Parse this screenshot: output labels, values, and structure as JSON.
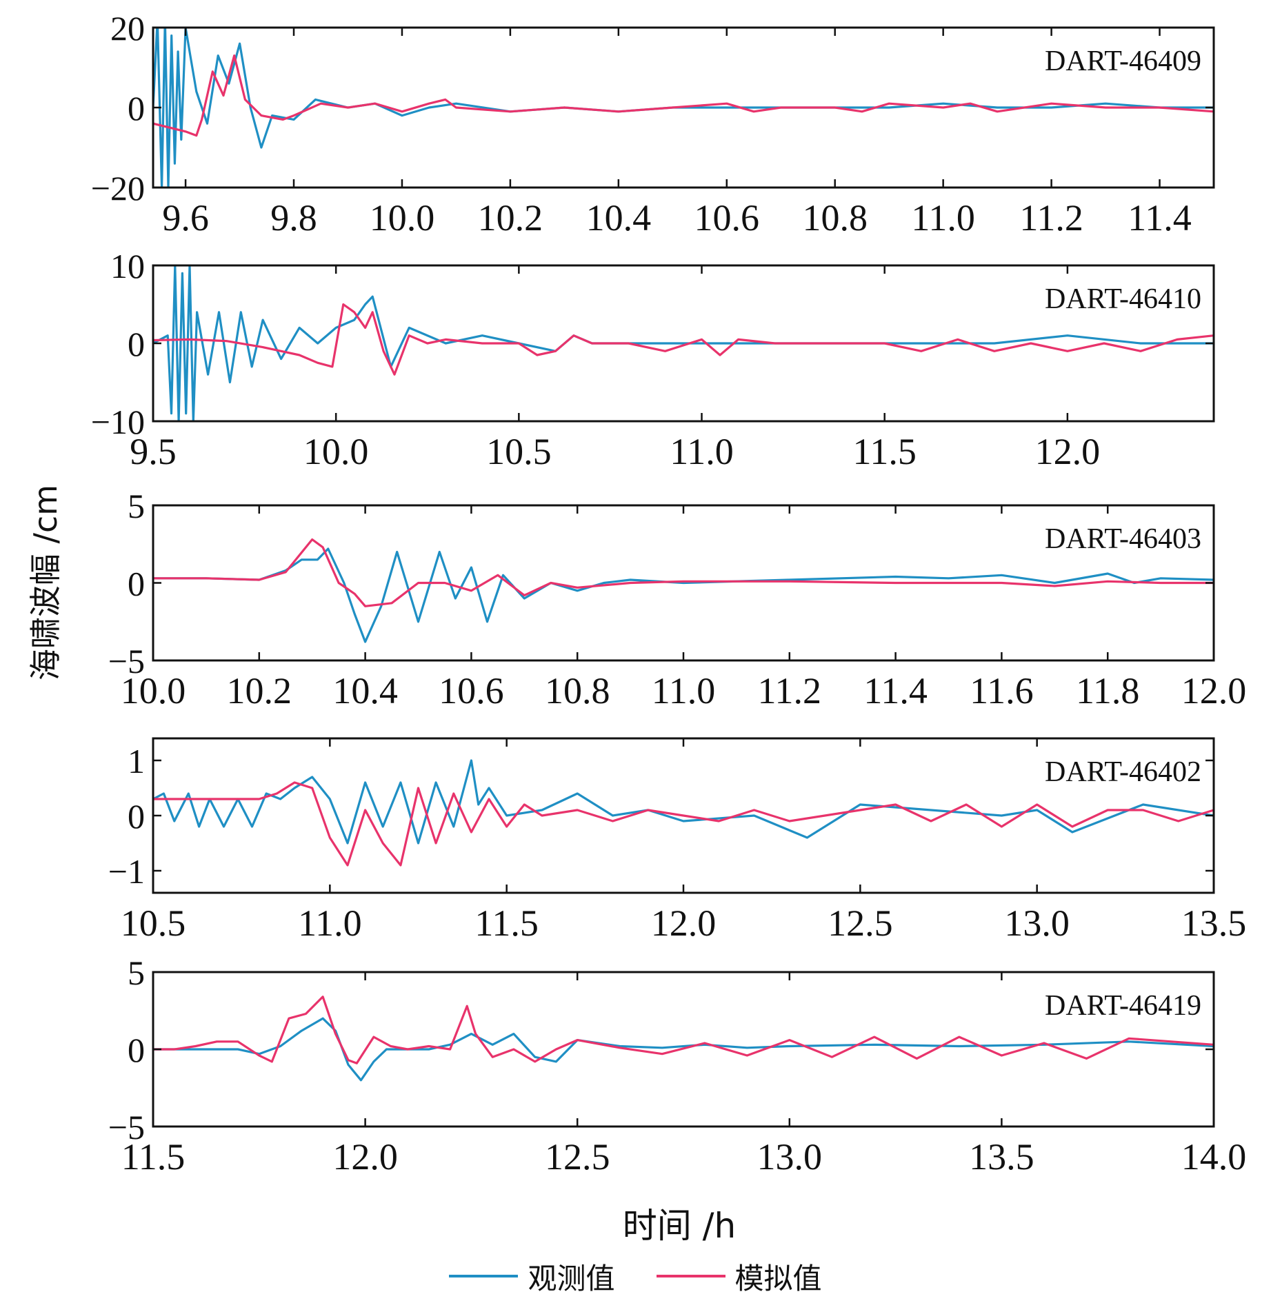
{
  "figure": {
    "ylabel": "海啸波幅 /cm",
    "xlabel": "时间 /h",
    "legend": [
      {
        "label": "观测值",
        "color": "#1f8fc4"
      },
      {
        "label": "模拟值",
        "color": "#e8336b"
      }
    ]
  },
  "chart_data": [
    {
      "type": "line",
      "station": "DART-46409",
      "xlim": [
        9.54,
        11.5
      ],
      "ylim": [
        -20,
        20
      ],
      "xticks": [
        9.6,
        9.8,
        10.0,
        10.2,
        10.4,
        10.6,
        10.8,
        11.0,
        11.2,
        11.4
      ],
      "xtick_labels": [
        "9.6",
        "9.8",
        "10.0",
        "10.2",
        "10.4",
        "10.6",
        "10.8",
        "11.0",
        "11.2",
        "11.4"
      ],
      "yticks": [
        -20,
        0,
        20
      ],
      "ytick_labels": [
        "−20",
        "0",
        "20"
      ],
      "series": [
        {
          "name": "观测值",
          "x": [
            9.54,
            9.548,
            9.556,
            9.562,
            9.568,
            9.574,
            9.58,
            9.586,
            9.592,
            9.6,
            9.61,
            9.62,
            9.64,
            9.66,
            9.68,
            9.7,
            9.72,
            9.74,
            9.76,
            9.8,
            9.84,
            9.9,
            9.95,
            10.0,
            10.05,
            10.1,
            10.2,
            10.3,
            10.4,
            10.5,
            10.6,
            10.7,
            10.8,
            10.9,
            11.0,
            11.1,
            11.2,
            11.3,
            11.4,
            11.5
          ],
          "y": [
            0,
            22,
            -20,
            22,
            -20,
            18,
            -14,
            14,
            -8,
            20,
            12,
            4,
            -4,
            13,
            6,
            16,
            0,
            -10,
            -2,
            -3,
            2,
            0,
            1,
            -2,
            0,
            1,
            -1,
            0,
            -1,
            0,
            0,
            0,
            0,
            0,
            1,
            0,
            0,
            1,
            0,
            0
          ]
        },
        {
          "name": "模拟值",
          "x": [
            9.54,
            9.6,
            9.62,
            9.63,
            9.65,
            9.67,
            9.69,
            9.71,
            9.74,
            9.78,
            9.8,
            9.85,
            9.9,
            9.95,
            10.0,
            10.05,
            10.08,
            10.1,
            10.2,
            10.3,
            10.4,
            10.5,
            10.6,
            10.65,
            10.7,
            10.8,
            10.85,
            10.9,
            11.0,
            11.05,
            11.1,
            11.2,
            11.3,
            11.4,
            11.5
          ],
          "y": [
            -4,
            -6,
            -7,
            -3,
            9,
            3,
            13,
            2,
            -2,
            -3,
            -2,
            1,
            0,
            1,
            -1,
            1,
            2,
            0,
            -1,
            0,
            -1,
            0,
            1,
            -1,
            0,
            0,
            -1,
            1,
            0,
            1,
            -1,
            1,
            0,
            0,
            -1
          ]
        }
      ]
    },
    {
      "type": "line",
      "station": "DART-46410",
      "xlim": [
        9.5,
        12.4
      ],
      "ylim": [
        -10,
        10
      ],
      "xticks": [
        9.5,
        10.0,
        10.5,
        11.0,
        11.5,
        12.0
      ],
      "xtick_labels": [
        "9.5",
        "10.0",
        "10.5",
        "11.0",
        "11.5",
        "12.0"
      ],
      "yticks": [
        -10,
        0,
        10
      ],
      "ytick_labels": [
        "−10",
        "0",
        "10"
      ],
      "series": [
        {
          "name": "观测值",
          "x": [
            9.5,
            9.54,
            9.55,
            9.56,
            9.57,
            9.58,
            9.59,
            9.6,
            9.61,
            9.62,
            9.65,
            9.68,
            9.71,
            9.74,
            9.77,
            9.8,
            9.85,
            9.9,
            9.95,
            10.0,
            10.05,
            10.08,
            10.1,
            10.15,
            10.2,
            10.3,
            10.4,
            10.5,
            10.6,
            10.65,
            10.7,
            10.8,
            10.9,
            11.0,
            11.2,
            11.4,
            11.6,
            11.8,
            12.0,
            12.2,
            12.4
          ],
          "y": [
            0,
            1,
            -9,
            10,
            -10,
            9,
            -9,
            10,
            -10,
            4,
            -4,
            4,
            -5,
            4,
            -3,
            3,
            -2,
            2,
            0,
            2,
            3,
            5,
            6,
            -3,
            2,
            0,
            1,
            0,
            -1,
            1,
            0,
            0,
            0,
            0,
            0,
            0,
            0,
            0,
            1,
            0,
            0
          ]
        },
        {
          "name": "模拟值",
          "x": [
            9.5,
            9.6,
            9.7,
            9.8,
            9.9,
            9.95,
            9.99,
            10.02,
            10.05,
            10.08,
            10.1,
            10.13,
            10.16,
            10.2,
            10.25,
            10.3,
            10.4,
            10.5,
            10.55,
            10.6,
            10.65,
            10.7,
            10.8,
            10.9,
            11.0,
            11.05,
            11.1,
            11.2,
            11.3,
            11.4,
            11.5,
            11.6,
            11.7,
            11.8,
            11.9,
            12.0,
            12.1,
            12.2,
            12.3,
            12.4
          ],
          "y": [
            0.4,
            0.5,
            0.3,
            -0.5,
            -1.5,
            -2.5,
            -3,
            5,
            4,
            2,
            4,
            -1,
            -4,
            1,
            0,
            0.5,
            0,
            0,
            -1.5,
            -1,
            1,
            0,
            0,
            -1,
            0.5,
            -1.5,
            0.5,
            0,
            0,
            0,
            0,
            -1,
            0.5,
            -1,
            0,
            -1,
            0,
            -1,
            0.5,
            1
          ]
        }
      ]
    },
    {
      "type": "line",
      "station": "DART-46403",
      "xlim": [
        10.0,
        12.0
      ],
      "ylim": [
        -5,
        5
      ],
      "xticks": [
        10.0,
        10.2,
        10.4,
        10.6,
        10.8,
        11.0,
        11.2,
        11.4,
        11.6,
        11.8,
        12.0
      ],
      "xtick_labels": [
        "10.0",
        "10.2",
        "10.4",
        "10.6",
        "10.8",
        "11.0",
        "11.2",
        "11.4",
        "11.6",
        "11.8",
        "12.0"
      ],
      "yticks": [
        -5,
        0,
        5
      ],
      "ytick_labels": [
        "−5",
        "0",
        "5"
      ],
      "series": [
        {
          "name": "观测值",
          "x": [
            10.0,
            10.1,
            10.2,
            10.25,
            10.28,
            10.31,
            10.33,
            10.36,
            10.38,
            10.4,
            10.43,
            10.46,
            10.5,
            10.54,
            10.57,
            10.6,
            10.63,
            10.66,
            10.7,
            10.75,
            10.8,
            10.85,
            10.9,
            11.0,
            11.2,
            11.4,
            11.5,
            11.6,
            11.7,
            11.8,
            11.85,
            11.9,
            12.0
          ],
          "y": [
            0.3,
            0.3,
            0.2,
            0.8,
            1.5,
            1.5,
            2.2,
            0,
            -2,
            -3.8,
            -1.5,
            2,
            -2.5,
            2,
            -1,
            1,
            -2.5,
            0.5,
            -1,
            0,
            -0.5,
            0,
            0.2,
            0,
            0.2,
            0.4,
            0.3,
            0.5,
            0,
            0.6,
            0,
            0.3,
            0.2
          ]
        },
        {
          "name": "模拟值",
          "x": [
            10.0,
            10.1,
            10.2,
            10.25,
            10.3,
            10.32,
            10.35,
            10.38,
            10.4,
            10.45,
            10.5,
            10.55,
            10.6,
            10.65,
            10.7,
            10.75,
            10.8,
            10.9,
            11.0,
            11.2,
            11.4,
            11.5,
            11.6,
            11.7,
            11.8,
            11.9,
            12.0
          ],
          "y": [
            0.3,
            0.3,
            0.2,
            0.7,
            2.8,
            2.3,
            0,
            -0.7,
            -1.5,
            -1.3,
            0,
            0,
            -0.5,
            0.5,
            -0.8,
            0,
            -0.3,
            0,
            0.1,
            0.1,
            0,
            0,
            0,
            -0.2,
            0.1,
            0,
            0
          ]
        }
      ]
    },
    {
      "type": "line",
      "station": "DART-46402",
      "xlim": [
        10.5,
        13.5
      ],
      "ylim": [
        -1.4,
        1.4
      ],
      "xticks": [
        10.5,
        11.0,
        11.5,
        12.0,
        12.5,
        13.0,
        13.5
      ],
      "xtick_labels": [
        "10.5",
        "11.0",
        "11.5",
        "12.0",
        "12.5",
        "13.0",
        "13.5"
      ],
      "yticks": [
        -1,
        0,
        1
      ],
      "ytick_labels": [
        "−1",
        "0",
        "1"
      ],
      "series": [
        {
          "name": "观测值",
          "x": [
            10.5,
            10.53,
            10.56,
            10.6,
            10.63,
            10.66,
            10.7,
            10.74,
            10.78,
            10.82,
            10.86,
            10.9,
            10.95,
            11.0,
            11.05,
            11.1,
            11.15,
            11.2,
            11.25,
            11.3,
            11.35,
            11.4,
            11.42,
            11.45,
            11.5,
            11.6,
            11.7,
            11.8,
            11.9,
            12.0,
            12.2,
            12.35,
            12.5,
            12.7,
            12.9,
            13.0,
            13.1,
            13.3,
            13.5
          ],
          "y": [
            0.3,
            0.4,
            -0.1,
            0.4,
            -0.2,
            0.3,
            -0.2,
            0.3,
            -0.2,
            0.4,
            0.3,
            0.5,
            0.7,
            0.3,
            -0.5,
            0.6,
            -0.2,
            0.6,
            -0.5,
            0.6,
            -0.2,
            1,
            0.2,
            0.5,
            0,
            0.1,
            0.4,
            0,
            0.1,
            -0.1,
            0,
            -0.4,
            0.2,
            0.1,
            0,
            0.1,
            -0.3,
            0.2,
            0
          ]
        },
        {
          "name": "模拟值",
          "x": [
            10.5,
            10.6,
            10.7,
            10.8,
            10.85,
            10.9,
            10.95,
            11.0,
            11.05,
            11.1,
            11.15,
            11.2,
            11.25,
            11.3,
            11.35,
            11.4,
            11.45,
            11.5,
            11.55,
            11.6,
            11.7,
            11.8,
            11.9,
            12.0,
            12.1,
            12.2,
            12.3,
            12.4,
            12.5,
            12.6,
            12.7,
            12.8,
            12.9,
            13.0,
            13.1,
            13.2,
            13.3,
            13.4,
            13.5
          ],
          "y": [
            0.3,
            0.3,
            0.3,
            0.3,
            0.4,
            0.6,
            0.5,
            -0.4,
            -0.9,
            0.1,
            -0.5,
            -0.9,
            0.5,
            -0.5,
            0.4,
            -0.3,
            0.3,
            -0.2,
            0.2,
            0,
            0.1,
            -0.1,
            0.1,
            0,
            -0.1,
            0.1,
            -0.1,
            0,
            0.1,
            0.2,
            -0.1,
            0.2,
            -0.2,
            0.2,
            -0.2,
            0.1,
            0.1,
            -0.1,
            0.1
          ]
        }
      ]
    },
    {
      "type": "line",
      "station": "DART-46419",
      "xlim": [
        11.5,
        14.0
      ],
      "ylim": [
        -5,
        5
      ],
      "xticks": [
        11.5,
        12.0,
        12.5,
        13.0,
        13.5,
        14.0
      ],
      "xtick_labels": [
        "11.5",
        "12.0",
        "12.5",
        "13.0",
        "13.5",
        "14.0"
      ],
      "yticks": [
        -5,
        0,
        5
      ],
      "ytick_labels": [
        "−5",
        "0",
        "5"
      ],
      "series": [
        {
          "name": "观测值",
          "x": [
            11.5,
            11.6,
            11.7,
            11.75,
            11.8,
            11.85,
            11.9,
            11.93,
            11.96,
            11.99,
            12.02,
            12.05,
            12.1,
            12.15,
            12.2,
            12.25,
            12.3,
            12.35,
            12.4,
            12.45,
            12.5,
            12.6,
            12.7,
            12.8,
            12.9,
            13.0,
            13.2,
            13.4,
            13.6,
            13.8,
            14.0
          ],
          "y": [
            0,
            0,
            0,
            -0.3,
            0.2,
            1.2,
            2,
            1.2,
            -1,
            -2,
            -0.8,
            0,
            0,
            0,
            0.3,
            1,
            0.3,
            1,
            -0.5,
            -0.8,
            0.6,
            0.2,
            0.1,
            0.3,
            0.1,
            0.2,
            0.3,
            0.2,
            0.3,
            0.5,
            0.2
          ]
        },
        {
          "name": "模拟值",
          "x": [
            11.5,
            11.55,
            11.6,
            11.65,
            11.7,
            11.75,
            11.78,
            11.82,
            11.86,
            11.9,
            11.93,
            11.96,
            11.98,
            12.02,
            12.06,
            12.1,
            12.15,
            12.2,
            12.24,
            12.26,
            12.3,
            12.35,
            12.4,
            12.45,
            12.5,
            12.6,
            12.7,
            12.8,
            12.9,
            13.0,
            13.1,
            13.2,
            13.3,
            13.4,
            13.5,
            13.6,
            13.7,
            13.8,
            13.9,
            14.0
          ],
          "y": [
            0,
            0,
            0.2,
            0.5,
            0.5,
            -0.4,
            -0.8,
            2,
            2.3,
            3.4,
            1,
            -0.7,
            -0.9,
            0.8,
            0.2,
            0,
            0.2,
            0,
            2.8,
            1,
            -0.5,
            0,
            -0.8,
            0,
            0.6,
            0.1,
            -0.3,
            0.4,
            -0.4,
            0.6,
            -0.5,
            0.8,
            -0.6,
            0.8,
            -0.4,
            0.4,
            -0.6,
            0.7,
            0.5,
            0.3
          ]
        }
      ]
    }
  ]
}
